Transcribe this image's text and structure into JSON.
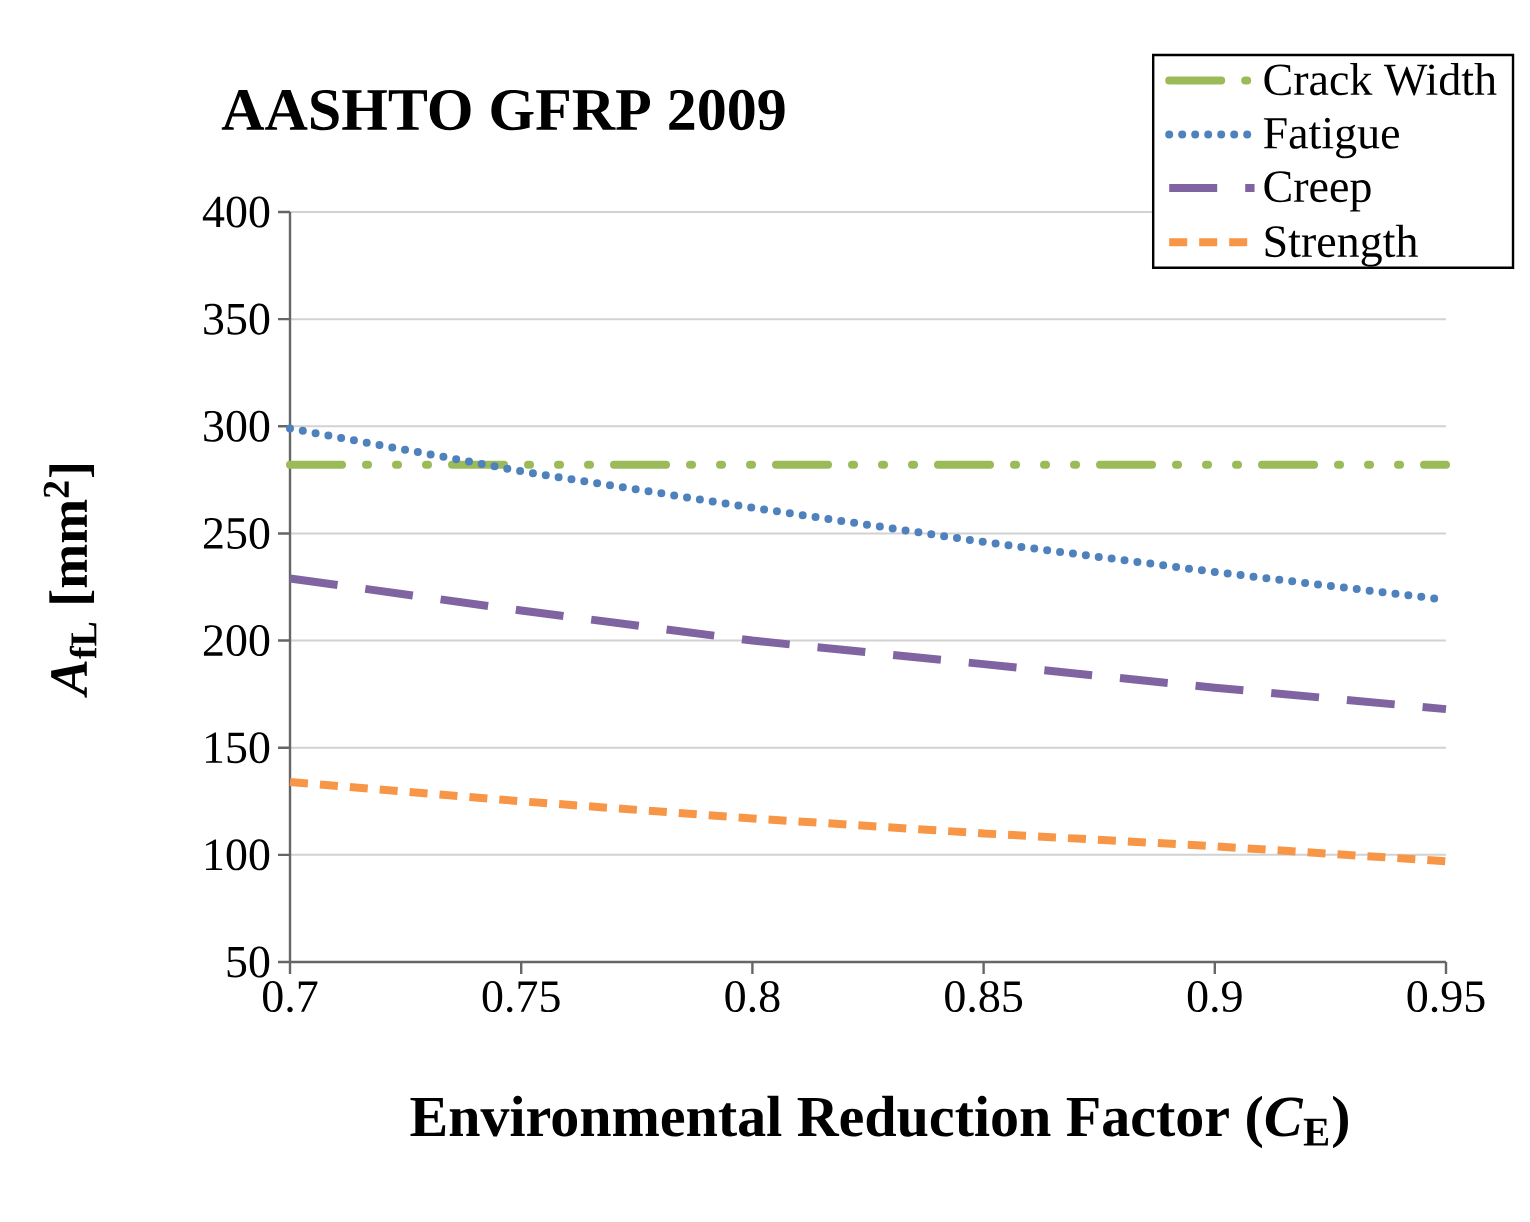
{
  "chart_data": {
    "type": "line",
    "title": "AASHTO GFRP 2009",
    "xlabel": "Environmental Reduction Factor (*C*$_{E}$)",
    "ylabel": "*A*$_{fL}$ [mm$^{2}$]",
    "x": [
      0.7,
      0.75,
      0.8,
      0.85,
      0.9,
      0.95
    ],
    "series": [
      {
        "name": "Crack Width",
        "color": "#9bbb59",
        "line_style": "dashdotdotted",
        "values": [
          282,
          282,
          282,
          282,
          282,
          282
        ]
      },
      {
        "name": "Fatigue",
        "color": "#4f81bd",
        "line_style": "dotted",
        "values": [
          299,
          279,
          262,
          246,
          232,
          219
        ]
      },
      {
        "name": "Creep",
        "color": "#8064a2",
        "line_style": "longdashed",
        "values": [
          229,
          214,
          200,
          189,
          178,
          168
        ]
      },
      {
        "name": "Strength",
        "color": "#f79646",
        "line_style": "dashed",
        "values": [
          134,
          125,
          117,
          110,
          104,
          97
        ]
      }
    ],
    "xlim": [
      0.7,
      0.95
    ],
    "xticks": [
      0.7,
      0.75,
      0.8,
      0.85,
      0.9,
      0.95
    ],
    "ylim": [
      50,
      400
    ],
    "yticks": [
      50,
      100,
      150,
      200,
      250,
      300,
      350,
      400
    ],
    "grid": "y",
    "legend": "top right",
    "marker": "none"
  }
}
